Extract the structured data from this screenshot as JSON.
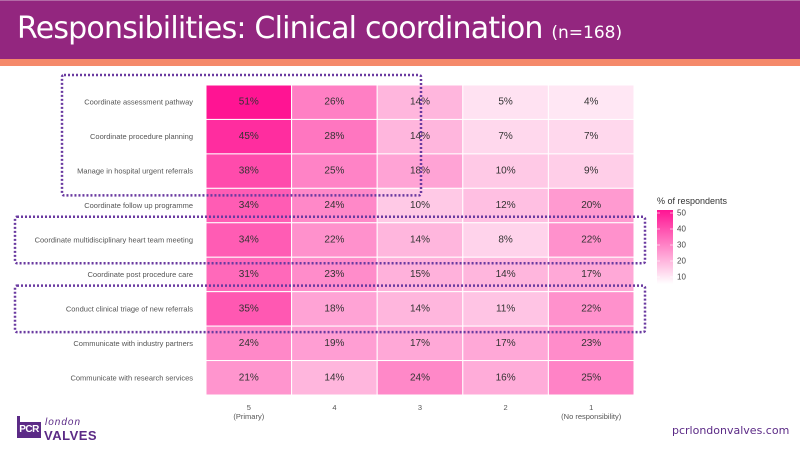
{
  "header": {
    "title": "Responsibilities: Clinical coordination",
    "n_label": "(n=168)"
  },
  "footer": {
    "logo_top": "london",
    "logo_pcr": "PCR",
    "logo_bottom": "VALVES",
    "website": "pcrlondonvalves.com"
  },
  "colors": {
    "header_bg": "#93267f",
    "stripe": "#f5896a",
    "scale_low": "#ffffff",
    "scale_high": "#ff1493",
    "highlight_box": "#6a3aa0"
  },
  "chart_data": {
    "type": "heatmap",
    "title": "Responsibilities: Clinical coordination (n=168)",
    "xlabel": "",
    "ylabel": "",
    "rows": [
      "Coordinate assessment pathway",
      "Coordinate procedure planning",
      "Manage in hospital urgent referrals",
      "Coordinate follow up programme",
      "Coordinate multidisciplinary heart team meeting",
      "Coordinate post procedure care",
      "Conduct clinical triage of new referrals",
      "Communicate with industry partners",
      "Communicate with research services"
    ],
    "columns": [
      {
        "value": "5",
        "sublabel": "(Primary)"
      },
      {
        "value": "4",
        "sublabel": ""
      },
      {
        "value": "3",
        "sublabel": ""
      },
      {
        "value": "2",
        "sublabel": ""
      },
      {
        "value": "1",
        "sublabel": "(No responsibility)"
      }
    ],
    "values": [
      [
        51,
        26,
        14,
        5,
        4
      ],
      [
        45,
        28,
        14,
        7,
        7
      ],
      [
        38,
        25,
        18,
        10,
        9
      ],
      [
        34,
        24,
        10,
        12,
        20
      ],
      [
        34,
        22,
        14,
        8,
        22
      ],
      [
        31,
        23,
        15,
        14,
        17
      ],
      [
        35,
        18,
        14,
        11,
        22
      ],
      [
        24,
        19,
        17,
        17,
        23
      ],
      [
        21,
        14,
        24,
        16,
        25
      ]
    ],
    "value_suffix": "%",
    "legend": {
      "title": "% of respondents",
      "ticks": [
        50,
        40,
        30,
        20,
        10
      ],
      "range": [
        4,
        51
      ],
      "placement": "right"
    },
    "highlighted_groups": [
      {
        "rows": [
          0,
          1,
          2
        ],
        "columns": [
          0,
          2
        ]
      },
      {
        "rows": [
          4
        ],
        "columns": [
          0,
          4
        ]
      },
      {
        "rows": [
          6
        ],
        "columns": [
          0,
          4
        ]
      }
    ]
  }
}
